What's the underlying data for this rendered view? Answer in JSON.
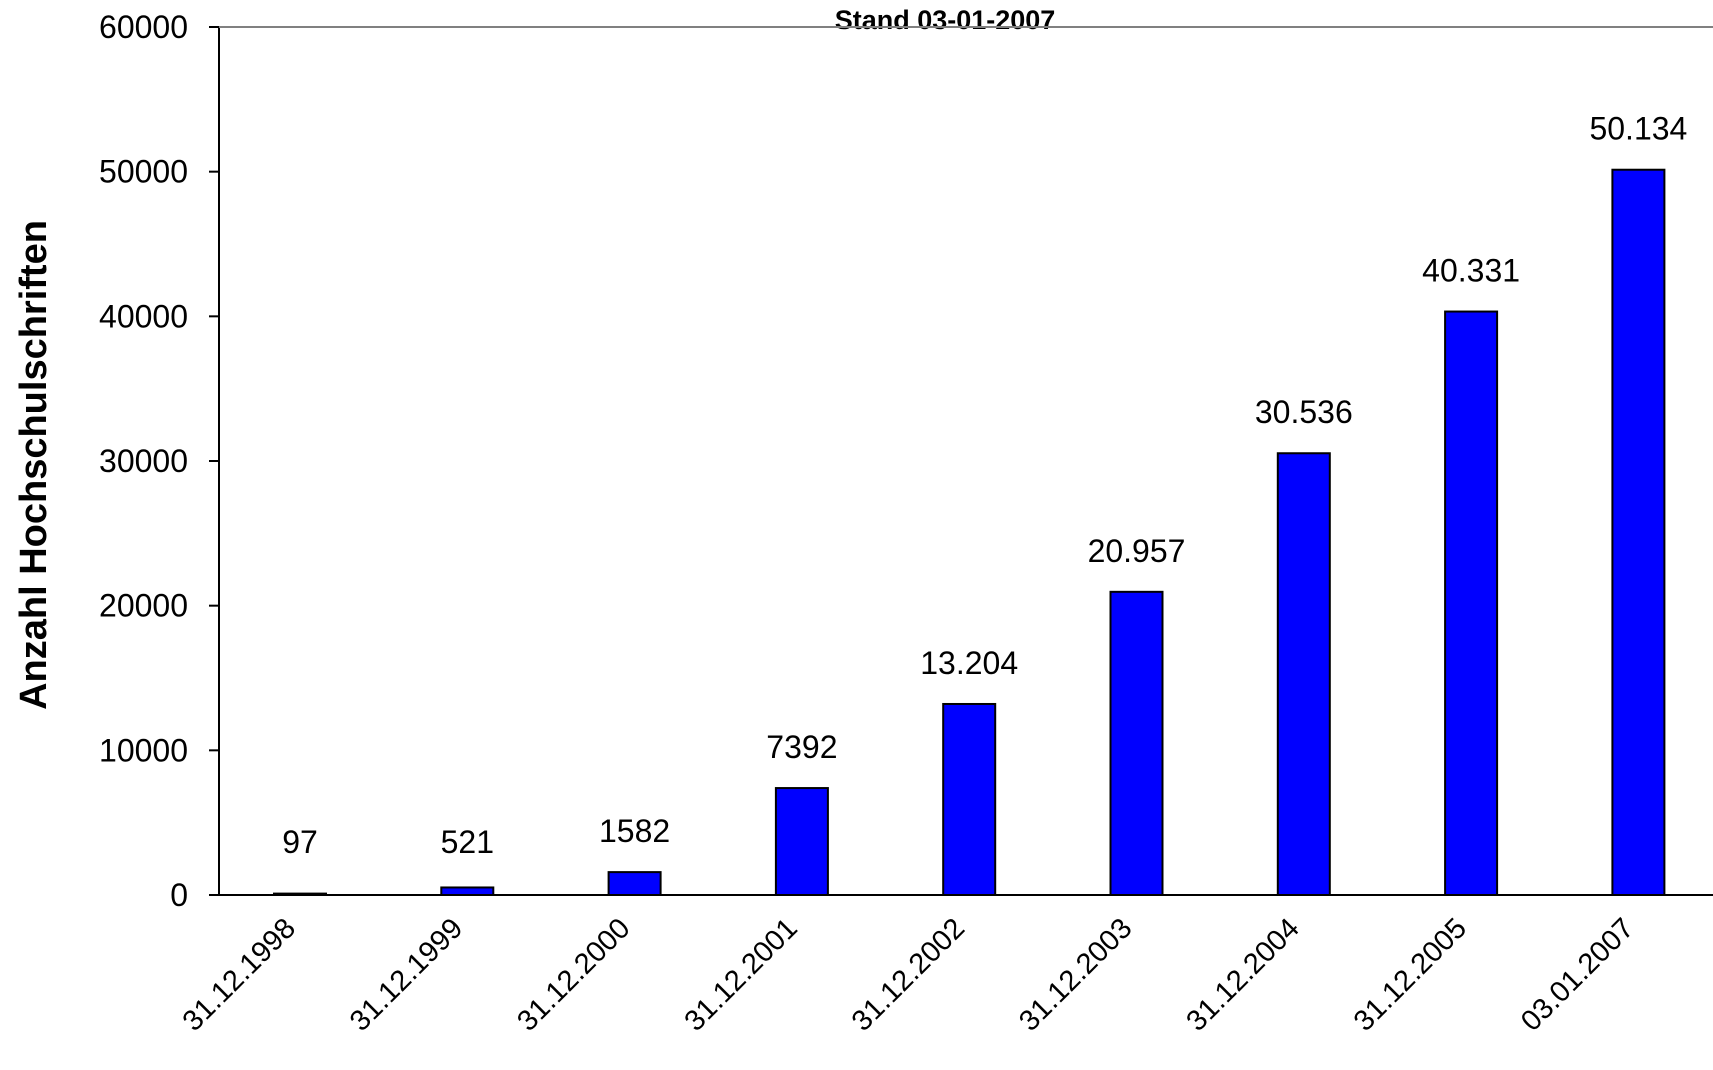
{
  "chart_data": {
    "type": "bar",
    "title": "Stand 03-01-2007",
    "xlabel": "",
    "ylabel": "Anzahl Hochschulschriften",
    "ylim": [
      0,
      60000
    ],
    "yticks": [
      0,
      10000,
      20000,
      30000,
      40000,
      50000,
      60000
    ],
    "yticks_text": [
      "0",
      "10000",
      "20000",
      "30000",
      "40000",
      "50000",
      "60000"
    ],
    "categories": [
      "31.12.1998",
      "31.12.1999",
      "31.12.2000",
      "31.12.2001",
      "31.12.2002",
      "31.12.2003",
      "31.12.2004",
      "31.12.2005",
      "03.01.2007"
    ],
    "values": [
      97,
      521,
      1582,
      7392,
      13204,
      20957,
      30536,
      40331,
      50134
    ],
    "data_labels": [
      "97",
      "521",
      "1582",
      "7392",
      "13.204",
      "20.957",
      "30.536",
      "40.331",
      "50.134"
    ],
    "bar_color": "#0000FF",
    "bar_edge_color": "#000000",
    "grid": false,
    "legend": "none"
  }
}
